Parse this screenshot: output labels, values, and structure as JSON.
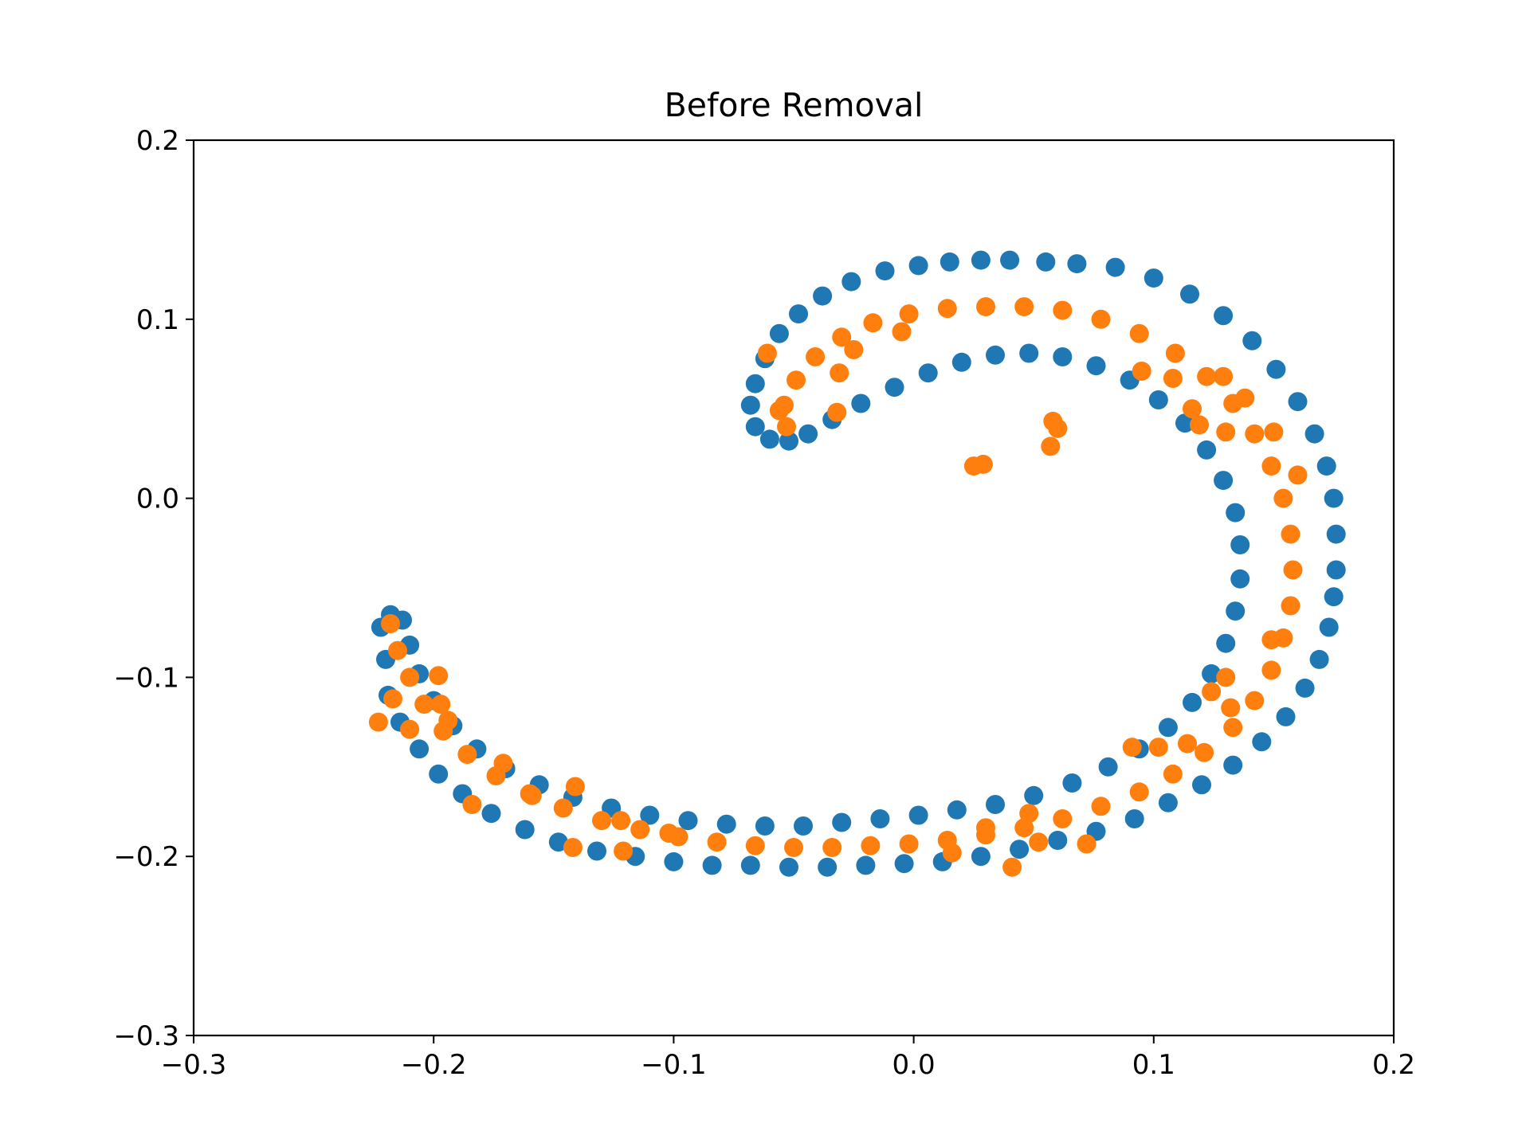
{
  "chart_data": {
    "type": "scatter",
    "title": "Before Removal",
    "xlabel": "",
    "ylabel": "",
    "xlim": [
      -0.3,
      0.2
    ],
    "ylim": [
      -0.3,
      0.2
    ],
    "x_ticks": [
      -0.3,
      -0.2,
      -0.1,
      0.0,
      0.1,
      0.2
    ],
    "x_tick_labels": [
      "−0.3",
      "−0.2",
      "−0.1",
      "0.0",
      "0.1",
      "0.2"
    ],
    "y_ticks": [
      -0.3,
      -0.2,
      -0.1,
      0.0,
      0.1,
      0.2
    ],
    "y_tick_labels": [
      "−0.3",
      "−0.2",
      "−0.1",
      "0.0",
      "0.1",
      "0.2"
    ],
    "grid": false,
    "legend": "none",
    "series": [
      {
        "color": "#1f77b4",
        "points": [
          [
            -0.218,
            -0.065
          ],
          [
            -0.222,
            -0.072
          ],
          [
            -0.22,
            -0.09
          ],
          [
            -0.219,
            -0.11
          ],
          [
            -0.214,
            -0.125
          ],
          [
            -0.206,
            -0.14
          ],
          [
            -0.198,
            -0.154
          ],
          [
            -0.188,
            -0.165
          ],
          [
            -0.176,
            -0.176
          ],
          [
            -0.162,
            -0.185
          ],
          [
            -0.148,
            -0.192
          ],
          [
            -0.132,
            -0.197
          ],
          [
            -0.116,
            -0.2
          ],
          [
            -0.1,
            -0.203
          ],
          [
            -0.084,
            -0.205
          ],
          [
            -0.068,
            -0.205
          ],
          [
            -0.052,
            -0.206
          ],
          [
            -0.036,
            -0.206
          ],
          [
            -0.02,
            -0.205
          ],
          [
            -0.004,
            -0.204
          ],
          [
            0.012,
            -0.203
          ],
          [
            0.028,
            -0.2
          ],
          [
            0.044,
            -0.196
          ],
          [
            0.06,
            -0.191
          ],
          [
            0.076,
            -0.186
          ],
          [
            0.092,
            -0.179
          ],
          [
            0.106,
            -0.17
          ],
          [
            0.12,
            -0.16
          ],
          [
            0.133,
            -0.149
          ],
          [
            0.145,
            -0.136
          ],
          [
            0.155,
            -0.122
          ],
          [
            0.163,
            -0.106
          ],
          [
            0.169,
            -0.09
          ],
          [
            0.173,
            -0.072
          ],
          [
            0.175,
            -0.055
          ],
          [
            0.176,
            -0.04
          ],
          [
            0.176,
            -0.02
          ],
          [
            0.175,
            0.0
          ],
          [
            0.172,
            0.018
          ],
          [
            0.167,
            0.036
          ],
          [
            0.16,
            0.054
          ],
          [
            0.151,
            0.072
          ],
          [
            0.141,
            0.088
          ],
          [
            0.129,
            0.102
          ],
          [
            0.115,
            0.114
          ],
          [
            0.1,
            0.123
          ],
          [
            0.084,
            0.129
          ],
          [
            0.068,
            0.131
          ],
          [
            0.055,
            0.132
          ],
          [
            0.04,
            0.133
          ],
          [
            0.028,
            0.133
          ],
          [
            0.015,
            0.132
          ],
          [
            0.002,
            0.13
          ],
          [
            -0.012,
            0.127
          ],
          [
            -0.026,
            0.121
          ],
          [
            -0.038,
            0.113
          ],
          [
            -0.048,
            0.103
          ],
          [
            -0.056,
            0.092
          ],
          [
            -0.062,
            0.078
          ],
          [
            -0.066,
            0.064
          ],
          [
            -0.068,
            0.052
          ],
          [
            -0.066,
            0.04
          ],
          [
            -0.06,
            0.033
          ],
          [
            -0.052,
            0.032
          ],
          [
            -0.044,
            0.036
          ],
          [
            -0.034,
            0.044
          ],
          [
            -0.022,
            0.053
          ],
          [
            -0.008,
            0.062
          ],
          [
            0.006,
            0.07
          ],
          [
            0.02,
            0.076
          ],
          [
            0.034,
            0.08
          ],
          [
            0.048,
            0.081
          ],
          [
            0.062,
            0.079
          ],
          [
            0.076,
            0.074
          ],
          [
            0.09,
            0.066
          ],
          [
            0.102,
            0.055
          ],
          [
            0.113,
            0.042
          ],
          [
            0.122,
            0.027
          ],
          [
            0.129,
            0.01
          ],
          [
            0.134,
            -0.008
          ],
          [
            0.136,
            -0.026
          ],
          [
            0.136,
            -0.045
          ],
          [
            0.134,
            -0.063
          ],
          [
            0.13,
            -0.081
          ],
          [
            0.124,
            -0.098
          ],
          [
            0.116,
            -0.114
          ],
          [
            0.106,
            -0.128
          ],
          [
            0.094,
            -0.14
          ],
          [
            0.081,
            -0.15
          ],
          [
            0.066,
            -0.159
          ],
          [
            0.05,
            -0.166
          ],
          [
            0.034,
            -0.171
          ],
          [
            0.018,
            -0.174
          ],
          [
            0.002,
            -0.177
          ],
          [
            -0.014,
            -0.179
          ],
          [
            -0.03,
            -0.181
          ],
          [
            -0.046,
            -0.183
          ],
          [
            -0.062,
            -0.183
          ],
          [
            -0.078,
            -0.182
          ],
          [
            -0.094,
            -0.18
          ],
          [
            -0.11,
            -0.177
          ],
          [
            -0.126,
            -0.173
          ],
          [
            -0.142,
            -0.167
          ],
          [
            -0.156,
            -0.16
          ],
          [
            -0.17,
            -0.151
          ],
          [
            -0.182,
            -0.14
          ],
          [
            -0.192,
            -0.127
          ],
          [
            -0.2,
            -0.113
          ],
          [
            -0.206,
            -0.098
          ],
          [
            -0.21,
            -0.082
          ],
          [
            -0.213,
            -0.068
          ]
        ]
      },
      {
        "color": "#ff7f0e",
        "points": [
          [
            -0.218,
            -0.07
          ],
          [
            -0.215,
            -0.085
          ],
          [
            -0.21,
            -0.1
          ],
          [
            -0.204,
            -0.115
          ],
          [
            -0.196,
            -0.13
          ],
          [
            -0.186,
            -0.143
          ],
          [
            -0.174,
            -0.155
          ],
          [
            -0.16,
            -0.165
          ],
          [
            -0.146,
            -0.173
          ],
          [
            -0.13,
            -0.18
          ],
          [
            -0.114,
            -0.185
          ],
          [
            -0.098,
            -0.189
          ],
          [
            -0.082,
            -0.192
          ],
          [
            -0.066,
            -0.194
          ],
          [
            -0.05,
            -0.195
          ],
          [
            -0.034,
            -0.195
          ],
          [
            -0.018,
            -0.194
          ],
          [
            -0.002,
            -0.193
          ],
          [
            0.014,
            -0.191
          ],
          [
            0.03,
            -0.188
          ],
          [
            0.046,
            -0.184
          ],
          [
            0.062,
            -0.179
          ],
          [
            0.078,
            -0.172
          ],
          [
            0.094,
            -0.164
          ],
          [
            0.108,
            -0.154
          ],
          [
            0.121,
            -0.142
          ],
          [
            0.133,
            -0.128
          ],
          [
            0.142,
            -0.113
          ],
          [
            0.149,
            -0.096
          ],
          [
            0.154,
            -0.078
          ],
          [
            0.157,
            -0.06
          ],
          [
            0.158,
            -0.04
          ],
          [
            0.157,
            -0.02
          ],
          [
            0.154,
            0.0
          ],
          [
            0.149,
            0.018
          ],
          [
            0.142,
            0.036
          ],
          [
            0.133,
            0.053
          ],
          [
            0.122,
            0.068
          ],
          [
            0.109,
            0.081
          ],
          [
            0.094,
            0.092
          ],
          [
            0.078,
            0.1
          ],
          [
            0.062,
            0.105
          ],
          [
            0.046,
            0.107
          ],
          [
            0.03,
            0.107
          ],
          [
            0.014,
            0.106
          ],
          [
            -0.002,
            0.103
          ],
          [
            -0.017,
            0.098
          ],
          [
            -0.03,
            0.09
          ],
          [
            -0.041,
            0.079
          ],
          [
            -0.049,
            0.066
          ],
          [
            -0.054,
            0.052
          ],
          [
            -0.053,
            0.04
          ],
          [
            -0.061,
            0.081
          ],
          [
            -0.056,
            0.049
          ],
          [
            -0.032,
            0.048
          ],
          [
            -0.031,
            0.07
          ],
          [
            -0.025,
            0.083
          ],
          [
            -0.005,
            0.093
          ],
          [
            0.025,
            0.018
          ],
          [
            0.029,
            0.019
          ],
          [
            0.058,
            0.043
          ],
          [
            0.06,
            0.039
          ],
          [
            0.057,
            0.029
          ],
          [
            0.095,
            0.071
          ],
          [
            0.108,
            0.067
          ],
          [
            0.116,
            0.05
          ],
          [
            0.119,
            0.041
          ],
          [
            0.129,
            0.068
          ],
          [
            0.138,
            0.056
          ],
          [
            0.13,
            0.037
          ],
          [
            0.15,
            0.037
          ],
          [
            0.16,
            0.013
          ],
          [
            0.149,
            -0.079
          ],
          [
            0.13,
            -0.1
          ],
          [
            0.132,
            -0.117
          ],
          [
            0.124,
            -0.108
          ],
          [
            0.114,
            -0.137
          ],
          [
            0.102,
            -0.139
          ],
          [
            0.091,
            -0.139
          ],
          [
            0.072,
            -0.193
          ],
          [
            0.052,
            -0.192
          ],
          [
            0.048,
            -0.176
          ],
          [
            0.041,
            -0.206
          ],
          [
            0.03,
            -0.184
          ],
          [
            0.016,
            -0.198
          ],
          [
            -0.102,
            -0.187
          ],
          [
            -0.122,
            -0.18
          ],
          [
            -0.121,
            -0.197
          ],
          [
            -0.142,
            -0.195
          ],
          [
            -0.141,
            -0.161
          ],
          [
            -0.159,
            -0.166
          ],
          [
            -0.171,
            -0.148
          ],
          [
            -0.184,
            -0.171
          ],
          [
            -0.223,
            -0.125
          ],
          [
            -0.217,
            -0.112
          ],
          [
            -0.21,
            -0.129
          ],
          [
            -0.198,
            -0.099
          ],
          [
            -0.197,
            -0.115
          ],
          [
            -0.194,
            -0.124
          ]
        ]
      }
    ]
  }
}
